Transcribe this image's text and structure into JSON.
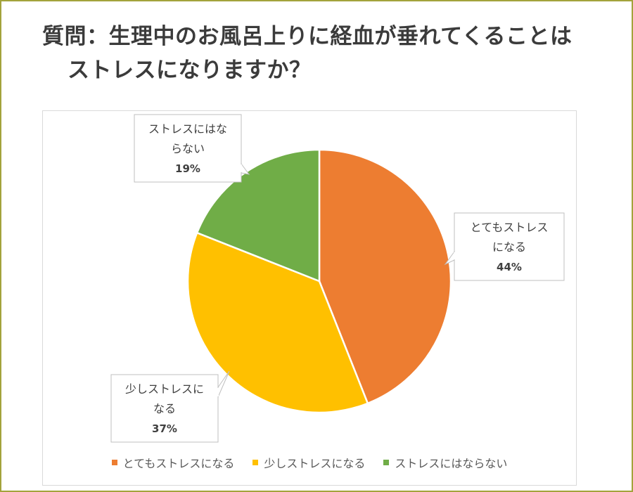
{
  "title": {
    "line1": "質問：生理中のお風呂上りに経血が垂れてくることは",
    "line2": "ストレスになりますか？"
  },
  "chart_data": {
    "type": "pie",
    "categories": [
      "とてもストレスになる",
      "少しストレスになる",
      "ストレスにはならない"
    ],
    "values": [
      44,
      37,
      19
    ],
    "labels": [
      {
        "lines": [
          "とてもストレス",
          "になる"
        ],
        "percent": "44%"
      },
      {
        "lines": [
          "少しストレスに",
          "なる"
        ],
        "percent": "37%"
      },
      {
        "lines": [
          "ストレスにはな",
          "らない"
        ],
        "percent": "19%"
      }
    ],
    "colors": [
      "#ed7d31",
      "#ffc000",
      "#70ad47"
    ],
    "legend": "bottom",
    "legend_labels": [
      "とてもストレスになる",
      "少しストレスになる",
      "ストレスにはならない"
    ]
  }
}
